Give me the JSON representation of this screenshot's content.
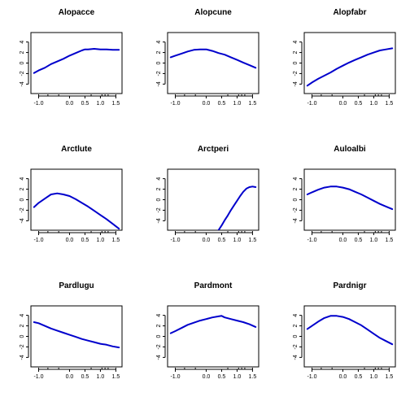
{
  "chart_data": [
    {
      "type": "line",
      "title": "Alopacce",
      "xlim": [
        -1.25,
        1.7
      ],
      "ylim": [
        -5.8,
        5.8
      ],
      "xticks": [
        "-1.0",
        "0.0",
        "0.5",
        "1.0",
        "1.5"
      ],
      "yticks": [
        "-4",
        "-2",
        "0",
        "2",
        "4"
      ],
      "rug": [
        -1.0,
        -0.7,
        -0.35,
        0.7,
        1.05,
        1.15,
        1.25,
        1.5
      ],
      "series": [
        {
          "color": "#0000cc",
          "x": [
            -1.15,
            -1.0,
            -0.8,
            -0.6,
            -0.4,
            -0.2,
            0.0,
            0.2,
            0.4,
            0.5,
            0.6,
            0.8,
            1.0,
            1.2,
            1.4,
            1.6
          ],
          "y": [
            -1.9,
            -1.4,
            -0.9,
            -0.2,
            0.3,
            0.8,
            1.4,
            1.9,
            2.4,
            2.6,
            2.6,
            2.7,
            2.6,
            2.6,
            2.5,
            2.5
          ]
        }
      ]
    },
    {
      "type": "line",
      "title": "Alopcune",
      "xlim": [
        -1.25,
        1.7
      ],
      "ylim": [
        -5.8,
        5.8
      ],
      "xticks": [
        "-1.0",
        "0.0",
        "0.5",
        "1.0",
        "1.5"
      ],
      "yticks": [
        "-4",
        "-2",
        "0",
        "2",
        "4"
      ],
      "rug": [
        -1.0,
        -0.7,
        -0.35,
        0.7,
        1.05,
        1.15,
        1.25,
        1.5
      ],
      "series": [
        {
          "color": "#0000cc",
          "x": [
            -1.15,
            -1.0,
            -0.8,
            -0.6,
            -0.4,
            -0.2,
            0.0,
            0.2,
            0.4,
            0.6,
            0.8,
            1.0,
            1.2,
            1.4,
            1.6
          ],
          "y": [
            1.1,
            1.4,
            1.8,
            2.2,
            2.5,
            2.6,
            2.6,
            2.3,
            1.9,
            1.6,
            1.1,
            0.6,
            0.1,
            -0.4,
            -0.9
          ]
        }
      ]
    },
    {
      "type": "line",
      "title": "Alopfabr",
      "xlim": [
        -1.25,
        1.7
      ],
      "ylim": [
        -5.8,
        5.8
      ],
      "xticks": [
        "-1.0",
        "0.0",
        "0.5",
        "1.0",
        "1.5"
      ],
      "yticks": [
        "-4",
        "-2",
        "0",
        "2",
        "4"
      ],
      "rug": [
        -1.0,
        -0.7,
        -0.35,
        0.7,
        1.05,
        1.15,
        1.25,
        1.5
      ],
      "series": [
        {
          "color": "#0000cc",
          "x": [
            -1.15,
            -1.0,
            -0.8,
            -0.6,
            -0.4,
            -0.2,
            0.0,
            0.2,
            0.4,
            0.6,
            0.8,
            1.0,
            1.2,
            1.4,
            1.6
          ],
          "y": [
            -4.3,
            -3.7,
            -3.0,
            -2.4,
            -1.8,
            -1.1,
            -0.5,
            0.1,
            0.6,
            1.1,
            1.6,
            2.0,
            2.4,
            2.6,
            2.8
          ]
        }
      ]
    },
    {
      "type": "line",
      "title": "Arctlute",
      "xlim": [
        -1.25,
        1.7
      ],
      "ylim": [
        -5.8,
        5.8
      ],
      "xticks": [
        "-1.0",
        "0.0",
        "0.5",
        "1.0",
        "1.5"
      ],
      "yticks": [
        "-4",
        "-2",
        "0",
        "2",
        "4"
      ],
      "rug": [
        -1.0,
        -0.7,
        -0.35,
        0.7,
        1.05,
        1.15,
        1.25,
        1.5
      ],
      "series": [
        {
          "color": "#0000cc",
          "x": [
            -1.15,
            -1.0,
            -0.8,
            -0.6,
            -0.4,
            -0.2,
            0.0,
            0.2,
            0.4,
            0.6,
            0.8,
            1.0,
            1.2,
            1.4,
            1.6
          ],
          "y": [
            -1.4,
            -0.6,
            0.2,
            1.0,
            1.2,
            1.0,
            0.7,
            0.1,
            -0.6,
            -1.3,
            -2.1,
            -2.9,
            -3.7,
            -4.6,
            -5.5
          ]
        }
      ]
    },
    {
      "type": "line",
      "title": "Arctperi",
      "xlim": [
        -1.25,
        1.7
      ],
      "ylim": [
        -5.8,
        5.8
      ],
      "xticks": [
        "-1.0",
        "0.0",
        "0.5",
        "1.0",
        "1.5"
      ],
      "yticks": [
        "-4",
        "-2",
        "0",
        "2",
        "4"
      ],
      "rug": [
        -1.0,
        -0.7,
        -0.35,
        0.7,
        1.05,
        1.15,
        1.25,
        1.5
      ],
      "series": [
        {
          "color": "#0000cc",
          "x": [
            0.4,
            0.5,
            0.6,
            0.7,
            0.8,
            0.9,
            1.0,
            1.1,
            1.2,
            1.3,
            1.4,
            1.5,
            1.6
          ],
          "y": [
            -5.8,
            -4.9,
            -3.9,
            -3.0,
            -2.0,
            -1.1,
            -0.2,
            0.7,
            1.5,
            2.1,
            2.4,
            2.5,
            2.4
          ]
        }
      ]
    },
    {
      "type": "line",
      "title": "Auloalbi",
      "xlim": [
        -1.25,
        1.7
      ],
      "ylim": [
        -5.8,
        5.8
      ],
      "xticks": [
        "-1.0",
        "0.0",
        "0.5",
        "1.0",
        "1.5"
      ],
      "yticks": [
        "-4",
        "-2",
        "0",
        "2",
        "4"
      ],
      "rug": [
        -1.0,
        -0.7,
        -0.35,
        0.7,
        1.05,
        1.15,
        1.25,
        1.5
      ],
      "series": [
        {
          "color": "#0000cc",
          "x": [
            -1.15,
            -1.0,
            -0.8,
            -0.6,
            -0.4,
            -0.2,
            0.0,
            0.2,
            0.4,
            0.6,
            0.8,
            1.0,
            1.2,
            1.4,
            1.6
          ],
          "y": [
            1.0,
            1.4,
            1.9,
            2.3,
            2.5,
            2.5,
            2.3,
            2.0,
            1.5,
            1.0,
            0.4,
            -0.2,
            -0.8,
            -1.3,
            -1.8
          ]
        }
      ]
    },
    {
      "type": "line",
      "title": "Pardlugu",
      "xlim": [
        -1.25,
        1.7
      ],
      "ylim": [
        -5.8,
        5.8
      ],
      "xticks": [
        "-1.0",
        "0.0",
        "0.5",
        "1.0",
        "1.5"
      ],
      "yticks": [
        "-4",
        "-2",
        "0",
        "2",
        "4"
      ],
      "rug": [
        -1.0,
        -0.7,
        -0.35,
        0.7,
        1.05,
        1.15,
        1.25,
        1.5
      ],
      "series": [
        {
          "color": "#0000cc",
          "x": [
            -1.15,
            -1.0,
            -0.8,
            -0.6,
            -0.4,
            -0.2,
            0.0,
            0.2,
            0.4,
            0.6,
            0.8,
            1.0,
            1.2,
            1.4,
            1.6
          ],
          "y": [
            2.7,
            2.5,
            2.0,
            1.5,
            1.1,
            0.7,
            0.3,
            -0.1,
            -0.5,
            -0.8,
            -1.1,
            -1.4,
            -1.6,
            -1.9,
            -2.1
          ]
        }
      ]
    },
    {
      "type": "line",
      "title": "Pardmont",
      "xlim": [
        -1.25,
        1.7
      ],
      "ylim": [
        -5.8,
        5.8
      ],
      "xticks": [
        "-1.0",
        "0.0",
        "0.5",
        "1.0",
        "1.5"
      ],
      "yticks": [
        "-4",
        "-2",
        "0",
        "2",
        "4"
      ],
      "rug": [
        -1.0,
        -0.7,
        -0.35,
        0.7,
        1.05,
        1.15,
        1.25,
        1.5
      ],
      "series": [
        {
          "color": "#0000cc",
          "x": [
            -1.15,
            -1.0,
            -0.8,
            -0.6,
            -0.4,
            -0.2,
            0.0,
            0.2,
            0.4,
            0.5,
            0.6,
            0.8,
            1.0,
            1.2,
            1.4,
            1.6
          ],
          "y": [
            0.6,
            1.0,
            1.6,
            2.2,
            2.6,
            3.0,
            3.3,
            3.6,
            3.8,
            3.9,
            3.6,
            3.3,
            3.0,
            2.7,
            2.3,
            1.8
          ]
        }
      ]
    },
    {
      "type": "line",
      "title": "Pardnigr",
      "xlim": [
        -1.25,
        1.7
      ],
      "ylim": [
        -5.8,
        5.8
      ],
      "xticks": [
        "-1.0",
        "0.0",
        "0.5",
        "1.0",
        "1.5"
      ],
      "yticks": [
        "-4",
        "-2",
        "0",
        "2",
        "4"
      ],
      "rug": [
        -1.0,
        -0.7,
        -0.35,
        0.7,
        1.05,
        1.15,
        1.25,
        1.5
      ],
      "series": [
        {
          "color": "#0000cc",
          "x": [
            -1.15,
            -1.0,
            -0.8,
            -0.6,
            -0.4,
            -0.2,
            0.0,
            0.2,
            0.4,
            0.6,
            0.8,
            1.0,
            1.2,
            1.4,
            1.6
          ],
          "y": [
            1.4,
            2.0,
            2.8,
            3.5,
            3.9,
            3.9,
            3.7,
            3.3,
            2.7,
            2.1,
            1.3,
            0.5,
            -0.3,
            -0.9,
            -1.5
          ]
        }
      ]
    }
  ]
}
